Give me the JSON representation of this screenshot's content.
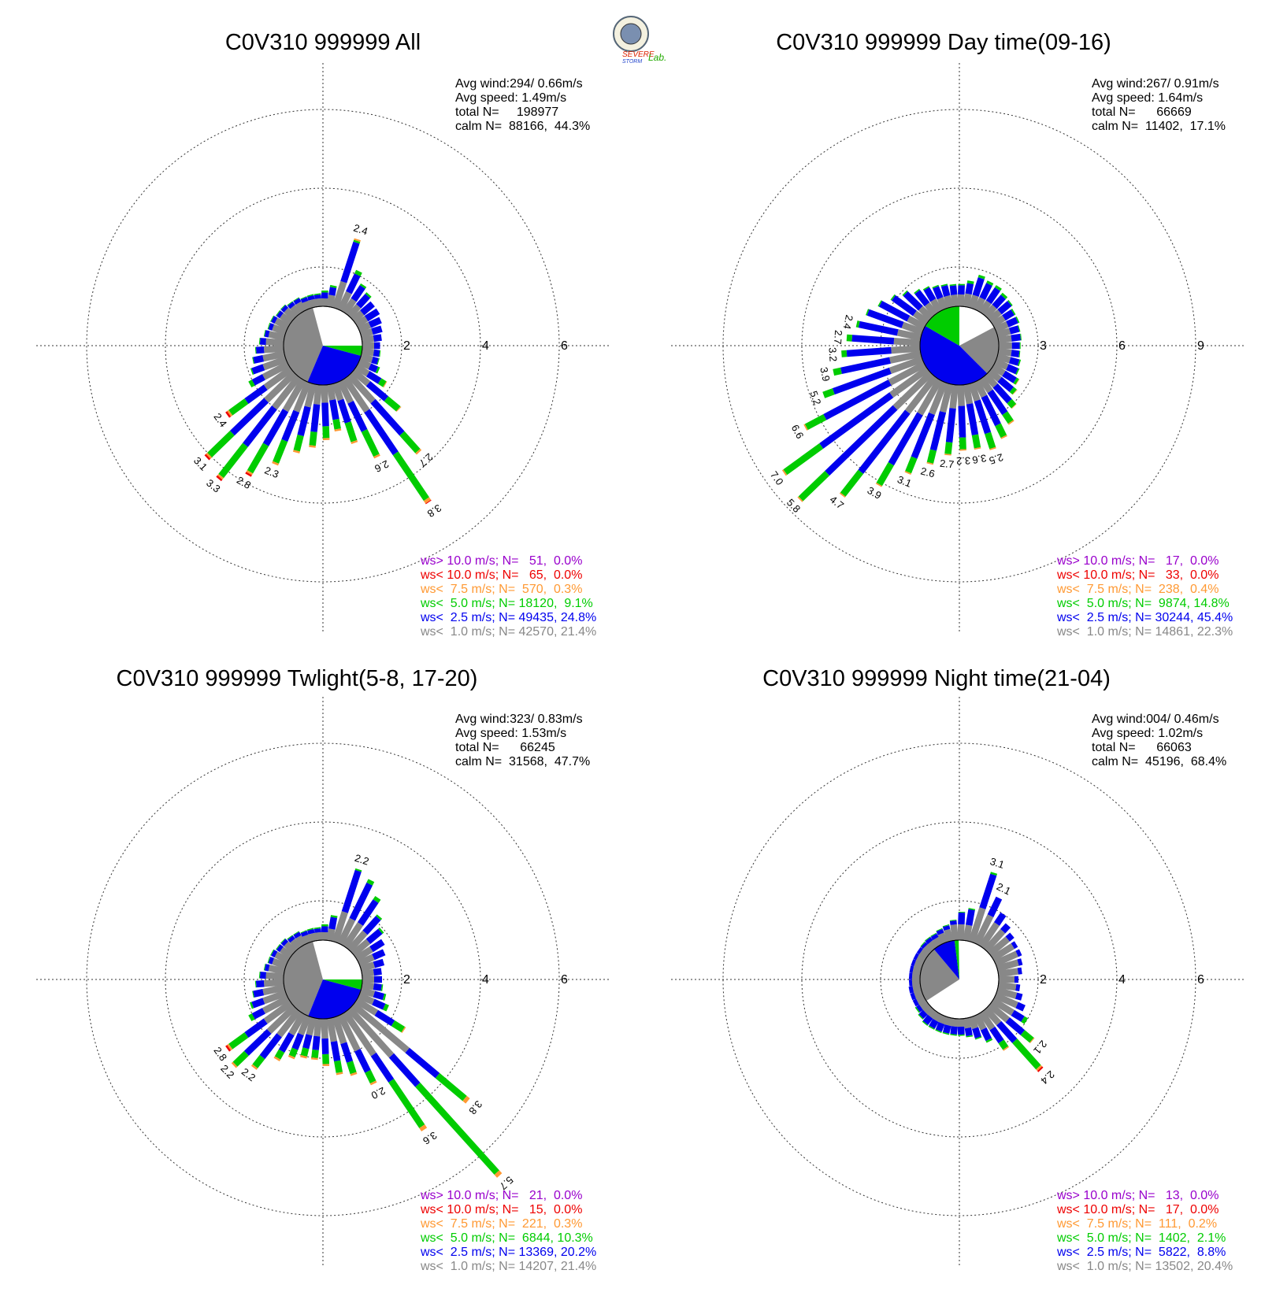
{
  "logo": {
    "line1": "SEVERE",
    "line2": "STORM",
    "line3": "Lab."
  },
  "colors": {
    "gray": "#888888",
    "blue": "#0000ee",
    "green": "#00cc00",
    "orange": "#ff9933",
    "red": "#ee0000",
    "purple": "#9900cc"
  },
  "chart_data": [
    {
      "type": "wind-rose",
      "title": "C0V310 999999 All",
      "info": [
        "Avg wind:294/ 0.66m/s",
        "Avg speed: 1.49m/s",
        "total N=     198977",
        "calm N=  88166,  44.3%"
      ],
      "rings": [
        2,
        4,
        6
      ],
      "ring_labels": [
        "2",
        "4",
        "6"
      ],
      "calm_pie": [
        {
          "color": "gray",
          "from": 105,
          "to": 247
        },
        {
          "color": "blue",
          "from": 247,
          "to": 345
        },
        {
          "color": "green",
          "from": 345,
          "to": 360
        }
      ],
      "sectors": [
        [
          0.3,
          0.15
        ],
        [
          0.3,
          0.2
        ],
        [
          0.3,
          0.25
        ],
        [
          0.3,
          0.3
        ],
        [
          0.3,
          0.35
        ],
        [
          0.3,
          0.35
        ],
        [
          0.35,
          0.35,
          0.05
        ],
        [
          0.4,
          0.4,
          0.05
        ],
        [
          0.5,
          0.5,
          0.1
        ],
        [
          0.7,
          1.05,
          0.05,
          0.04
        ],
        [
          0.3,
          0.2,
          0.05
        ],
        [
          0.2,
          0.15,
          0.05
        ],
        [
          0.2,
          0.1,
          0.03
        ],
        [
          0.2,
          0.1,
          0.03
        ],
        [
          0.2,
          0.1,
          0.02
        ],
        [
          0.25,
          0.1,
          0.02
        ],
        [
          0.25,
          0.1,
          0.02
        ],
        [
          0.3,
          0.1,
          0.02
        ],
        [
          0.3,
          0.1,
          0.02
        ],
        [
          0.35,
          0.1,
          0.02
        ],
        [
          0.35,
          0.1,
          0.02
        ],
        [
          0.4,
          0.1,
          0.02
        ],
        [
          0.45,
          0.15,
          0.02
        ],
        [
          0.5,
          0.2,
          0.02
        ],
        [
          0.55,
          0.25,
          0.02
        ],
        [
          0.6,
          0.3,
          0.03
        ],
        [
          0.7,
          0.3,
          0.1
        ],
        [
          0.8,
          0.6,
          0.5,
          0.05,
          0.05
        ],
        [
          1.0,
          1.2,
          0.8,
          0.05,
          0.05
        ],
        [
          1.0,
          1.2,
          1.0,
          0.05,
          0.05
        ],
        [
          0.9,
          1.0,
          0.8,
          0.05,
          0.05
        ],
        [
          0.8,
          0.8,
          0.6,
          0.05
        ],
        [
          0.6,
          0.75,
          0.4,
          0.05
        ],
        [
          0.5,
          0.7,
          0.35,
          0.05
        ],
        [
          0.45,
          0.6,
          0.3,
          0.05
        ],
        [
          0.4,
          0.5,
          0.25,
          0.05
        ],
        [
          0.45,
          0.6,
          0.5,
          0.05
        ],
        [
          0.6,
          0.8,
          0.7,
          0.05
        ],
        [
          1.0,
          1.3,
          1.4,
          0.08,
          0.02
        ],
        [
          0.9,
          1.1,
          0.6,
          0.05
        ],
        [
          0.5,
          0.6,
          0.4,
          0.02
        ],
        [
          0.35,
          0.35,
          0.15,
          0.02
        ],
        [
          0.3,
          0.2,
          0.05
        ],
        [
          0.3,
          0.15,
          0.02
        ],
        [
          0.3,
          0.15,
          0.02
        ]
      ],
      "peak_labels": [
        "2.4",
        "2.4",
        "3.1",
        "3.3",
        "2.8",
        "2.3",
        "2.6",
        "3.8",
        "2.7"
      ],
      "legend": [
        {
          "color": "purple",
          "text": "ws> 10.0 m/s; N=   51,  0.0%"
        },
        {
          "color": "red",
          "text": "ws< 10.0 m/s; N=   65,  0.0%"
        },
        {
          "color": "orange",
          "text": "ws<  7.5 m/s; N=  570,  0.3%"
        },
        {
          "color": "green",
          "text": "ws<  5.0 m/s; N= 18120,  9.1%"
        },
        {
          "color": "blue",
          "text": "ws<  2.5 m/s; N= 49435, 24.8%"
        },
        {
          "color": "gray",
          "text": "ws<  1.0 m/s; N= 42570, 21.4%"
        }
      ]
    },
    {
      "type": "wind-rose",
      "title": "C0V310 999999 Day time(09-16)",
      "info": [
        "Avg wind:267/ 0.91m/s",
        "Avg speed: 1.64m/s",
        "total N=      66669",
        "calm N=  11402,  17.1%"
      ],
      "rings": [
        3,
        6,
        9
      ],
      "ring_labels": [
        "3",
        "6",
        "9"
      ],
      "calm_pie": [
        {
          "color": "gray",
          "from": 315,
          "to": 28
        },
        {
          "color": "blue",
          "from": 150,
          "to": 315
        },
        {
          "color": "green",
          "from": 90,
          "to": 150
        }
      ],
      "sectors": [
        [
          0.5,
          0.3,
          0.03
        ],
        [
          0.5,
          0.35,
          0.03
        ],
        [
          0.5,
          0.35,
          0.03
        ],
        [
          0.5,
          0.4,
          0.05
        ],
        [
          0.5,
          0.4,
          0.05
        ],
        [
          0.5,
          0.5,
          0.05
        ],
        [
          0.5,
          0.5,
          0.1
        ],
        [
          0.5,
          0.6,
          0.1
        ],
        [
          0.5,
          0.6,
          0.1
        ],
        [
          0.5,
          0.7,
          0.1
        ],
        [
          0.5,
          0.4,
          0.1
        ],
        [
          0.45,
          0.35,
          0.05
        ],
        [
          0.45,
          0.35,
          0.05
        ],
        [
          0.45,
          0.4,
          0.05
        ],
        [
          0.45,
          0.45,
          0.05
        ],
        [
          0.5,
          0.5,
          0.05
        ],
        [
          0.5,
          0.6,
          0.05
        ],
        [
          0.55,
          0.8,
          0.05
        ],
        [
          0.6,
          1.0,
          0.05
        ],
        [
          0.7,
          1.2,
          0.05
        ],
        [
          0.8,
          1.4,
          0.05
        ],
        [
          0.9,
          1.5,
          0.1
        ],
        [
          1.0,
          1.6,
          0.2
        ],
        [
          1.1,
          1.7,
          0.2
        ],
        [
          1.2,
          1.9,
          0.3
        ],
        [
          1.3,
          2.3,
          0.4
        ],
        [
          1.5,
          2.8,
          0.8,
          0.05
        ],
        [
          1.7,
          3.3,
          1.7,
          0.06
        ],
        [
          1.9,
          3.6,
          1.4,
          0.05
        ],
        [
          1.7,
          2.9,
          1.1,
          0.05
        ],
        [
          1.5,
          2.2,
          0.9,
          0.05
        ],
        [
          1.3,
          1.8,
          0.6,
          0.05
        ],
        [
          1.1,
          1.5,
          0.5,
          0.05
        ],
        [
          0.9,
          1.3,
          0.45,
          0.05
        ],
        [
          0.8,
          1.2,
          0.45,
          0.05
        ],
        [
          0.75,
          1.2,
          0.5,
          0.05
        ],
        [
          0.7,
          1.3,
          0.6,
          0.05
        ],
        [
          0.65,
          1.2,
          0.5,
          0.05
        ],
        [
          0.6,
          1.0,
          0.4,
          0.05
        ],
        [
          0.55,
          0.8,
          0.25,
          0.02
        ],
        [
          0.5,
          0.6,
          0.15,
          0.02
        ],
        [
          0.5,
          0.5,
          0.1,
          0.02
        ],
        [
          0.5,
          0.4,
          0.05
        ],
        [
          0.5,
          0.35,
          0.05
        ],
        [
          0.5,
          0.3,
          0.03
        ]
      ],
      "peak_labels": [
        "2.4",
        "2.7",
        "3.2",
        "3.9",
        "5.2",
        "6.6",
        "7.0",
        "5.8",
        "4.7",
        "3.9",
        "3.1",
        "2.6",
        "2.7",
        "3.2",
        "3.6",
        "2.5"
      ],
      "legend": [
        {
          "color": "purple",
          "text": "ws> 10.0 m/s; N=   17,  0.0%"
        },
        {
          "color": "red",
          "text": "ws< 10.0 m/s; N=   33,  0.0%"
        },
        {
          "color": "orange",
          "text": "ws<  7.5 m/s; N=  238,  0.4%"
        },
        {
          "color": "green",
          "text": "ws<  5.0 m/s; N=  9874, 14.8%"
        },
        {
          "color": "blue",
          "text": "ws<  2.5 m/s; N= 30244, 45.4%"
        },
        {
          "color": "gray",
          "text": "ws<  1.0 m/s; N= 14861, 22.3%"
        }
      ]
    },
    {
      "type": "wind-rose",
      "title": "C0V310 999999 Twlight(5-8, 17-20)",
      "info": [
        "Avg wind:323/ 0.83m/s",
        "Avg speed: 1.53m/s",
        "total N=      66245",
        "calm N=  31568,  47.7%"
      ],
      "rings": [
        2,
        4,
        6
      ],
      "ring_labels": [
        "2",
        "4",
        "6"
      ],
      "calm_pie": [
        {
          "color": "gray",
          "from": 105,
          "to": 248
        },
        {
          "color": "blue",
          "from": 248,
          "to": 345
        },
        {
          "color": "green",
          "from": 345,
          "to": 360
        }
      ],
      "sectors": [
        [
          0.3,
          0.2
        ],
        [
          0.3,
          0.2
        ],
        [
          0.35,
          0.25
        ],
        [
          0.4,
          0.3
        ],
        [
          0.45,
          0.35
        ],
        [
          0.5,
          0.4,
          0.05
        ],
        [
          0.6,
          0.5,
          0.05
        ],
        [
          0.7,
          0.7,
          0.1
        ],
        [
          0.7,
          1.0,
          0.1
        ],
        [
          0.8,
          1.1,
          0.04
        ],
        [
          0.3,
          0.3,
          0.05
        ],
        [
          0.2,
          0.15,
          0.05
        ],
        [
          0.2,
          0.1,
          0.03
        ],
        [
          0.2,
          0.1,
          0.03
        ],
        [
          0.2,
          0.1,
          0.02
        ],
        [
          0.25,
          0.1,
          0.02
        ],
        [
          0.25,
          0.1,
          0.02
        ],
        [
          0.3,
          0.1,
          0.02
        ],
        [
          0.3,
          0.1,
          0.02
        ],
        [
          0.35,
          0.1,
          0.02
        ],
        [
          0.35,
          0.1,
          0.02
        ],
        [
          0.4,
          0.1,
          0.02
        ],
        [
          0.45,
          0.15,
          0.02
        ],
        [
          0.5,
          0.2,
          0.02
        ],
        [
          0.55,
          0.25,
          0.02
        ],
        [
          0.6,
          0.3,
          0.05
        ],
        [
          0.7,
          0.3,
          0.1
        ],
        [
          0.8,
          0.6,
          0.5,
          0.05,
          0.05
        ],
        [
          0.9,
          0.8,
          0.4,
          0.05
        ],
        [
          0.8,
          0.7,
          0.3,
          0.05
        ],
        [
          0.6,
          0.5,
          0.2,
          0.05
        ],
        [
          0.5,
          0.4,
          0.2,
          0.05
        ],
        [
          0.45,
          0.35,
          0.2,
          0.05
        ],
        [
          0.45,
          0.35,
          0.2,
          0.05
        ],
        [
          0.5,
          0.4,
          0.25,
          0.05
        ],
        [
          0.6,
          0.5,
          0.3,
          0.05
        ],
        [
          0.7,
          0.5,
          0.3,
          0.05
        ],
        [
          1.0,
          0.6,
          0.3,
          0.05
        ],
        [
          1.3,
          0.8,
          1.4,
          0.1
        ],
        [
          1.6,
          1.0,
          3.0,
          0.1
        ],
        [
          1.8,
          1.0,
          0.9,
          0.1
        ],
        [
          0.6,
          0.5,
          0.3,
          0.03
        ],
        [
          0.4,
          0.3,
          0.1
        ],
        [
          0.35,
          0.25,
          0.05
        ],
        [
          0.3,
          0.2,
          0.03
        ]
      ],
      "peak_labels": [
        "2.2",
        "2.8",
        "2.2",
        "2.2",
        "2.0",
        "3.6",
        "5.7",
        "3.8"
      ],
      "legend": [
        {
          "color": "purple",
          "text": "ws> 10.0 m/s; N=   21,  0.0%"
        },
        {
          "color": "red",
          "text": "ws< 10.0 m/s; N=   15,  0.0%"
        },
        {
          "color": "orange",
          "text": "ws<  7.5 m/s; N=  221,  0.3%"
        },
        {
          "color": "green",
          "text": "ws<  5.0 m/s; N=  6844, 10.3%"
        },
        {
          "color": "blue",
          "text": "ws<  2.5 m/s; N= 13369, 20.2%"
        },
        {
          "color": "gray",
          "text": "ws<  1.0 m/s; N= 14207, 21.4%"
        }
      ]
    },
    {
      "type": "wind-rose",
      "title": "C0V310 999999 Night time(21-04)",
      "info": [
        "Avg wind:004/ 0.46m/s",
        "Avg speed: 1.02m/s",
        "total N=      66063",
        "calm N=  45196,  68.4%"
      ],
      "rings": [
        2,
        4,
        6
      ],
      "ring_labels": [
        "2",
        "4",
        "6"
      ],
      "calm_pie": [
        {
          "color": "gray",
          "from": 130,
          "to": 213
        },
        {
          "color": "blue",
          "from": 97,
          "to": 130
        },
        {
          "color": "green",
          "from": 91,
          "to": 97
        }
      ],
      "sectors": [
        [
          0.4,
          0.1
        ],
        [
          0.5,
          0.1
        ],
        [
          0.55,
          0.1
        ],
        [
          0.6,
          0.1
        ],
        [
          0.6,
          0.1
        ],
        [
          0.6,
          0.15
        ],
        [
          0.65,
          0.2
        ],
        [
          0.7,
          0.3
        ],
        [
          0.8,
          0.5
        ],
        [
          0.9,
          0.9,
          0.05
        ],
        [
          0.4,
          0.4,
          0.03
        ],
        [
          0.4,
          0.3,
          0.02
        ],
        [
          0.4,
          0.1,
          0.02
        ],
        [
          0.3,
          0.1,
          0.02
        ],
        [
          0.25,
          0.1,
          0.02
        ],
        [
          0.2,
          0.1,
          0.02
        ],
        [
          0.2,
          0.1,
          0.02
        ],
        [
          0.2,
          0.08,
          0.02
        ],
        [
          0.2,
          0.08
        ],
        [
          0.2,
          0.08
        ],
        [
          0.2,
          0.08
        ],
        [
          0.2,
          0.08
        ],
        [
          0.2,
          0.08
        ],
        [
          0.2,
          0.08
        ],
        [
          0.2,
          0.1
        ],
        [
          0.2,
          0.1
        ],
        [
          0.2,
          0.1
        ],
        [
          0.2,
          0.1,
          0.03
        ],
        [
          0.2,
          0.15,
          0.03
        ],
        [
          0.2,
          0.2,
          0.03
        ],
        [
          0.2,
          0.2,
          0.03
        ],
        [
          0.2,
          0.2,
          0.03
        ],
        [
          0.2,
          0.2,
          0.03
        ],
        [
          0.2,
          0.2,
          0.03
        ],
        [
          0.2,
          0.2,
          0.03
        ],
        [
          0.25,
          0.2,
          0.03
        ],
        [
          0.3,
          0.25,
          0.03
        ],
        [
          0.4,
          0.3,
          0.05
        ],
        [
          0.5,
          0.4,
          0.2,
          0.03
        ],
        [
          0.5,
          0.6,
          0.9,
          0.05,
          0.04
        ],
        [
          0.6,
          0.5,
          0.3,
          0.02
        ],
        [
          0.6,
          0.3,
          0.1
        ],
        [
          0.6,
          0.2
        ],
        [
          0.5,
          0.15
        ],
        [
          0.45,
          0.1
        ]
      ],
      "peak_labels": [
        "2.1",
        "3.1",
        "2.4",
        "2.1"
      ],
      "legend": [
        {
          "color": "purple",
          "text": "ws> 10.0 m/s; N=   13,  0.0%"
        },
        {
          "color": "red",
          "text": "ws< 10.0 m/s; N=   17,  0.0%"
        },
        {
          "color": "orange",
          "text": "ws<  7.5 m/s; N=  111,  0.2%"
        },
        {
          "color": "green",
          "text": "ws<  5.0 m/s; N=  1402,  2.1%"
        },
        {
          "color": "blue",
          "text": "ws<  2.5 m/s; N=  5822,  8.8%"
        },
        {
          "color": "gray",
          "text": "ws<  1.0 m/s; N= 13502, 20.4%"
        }
      ]
    }
  ]
}
